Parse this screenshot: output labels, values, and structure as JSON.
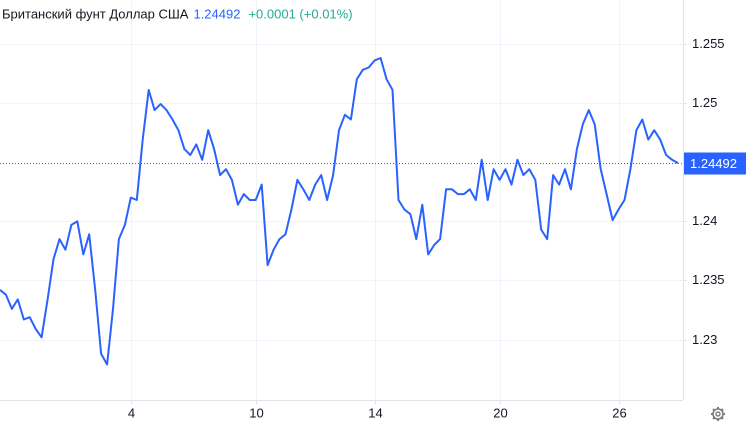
{
  "chart_data": {
    "type": "line",
    "title": "Британский фунт Доллар США",
    "current": 1.24492,
    "change": "+0.0001 (+0.01%)",
    "color": "#2962ff",
    "values": [
      1.2342,
      1.2338,
      1.2326,
      1.2334,
      1.2317,
      1.2319,
      1.2309,
      1.2302,
      1.2334,
      1.2368,
      1.2385,
      1.2376,
      1.2397,
      1.24,
      1.2372,
      1.2389,
      1.2342,
      1.2288,
      1.2279,
      1.2326,
      1.2385,
      1.2397,
      1.242,
      1.2418,
      1.2469,
      1.2511,
      1.2494,
      1.2499,
      1.2494,
      1.2486,
      1.2477,
      1.2461,
      1.2456,
      1.2465,
      1.2452,
      1.2477,
      1.2461,
      1.2439,
      1.2444,
      1.2435,
      1.2414,
      1.2423,
      1.2418,
      1.2418,
      1.2431,
      1.2363,
      1.2376,
      1.2385,
      1.2389,
      1.241,
      1.2435,
      1.2427,
      1.2418,
      1.2431,
      1.2439,
      1.2418,
      1.2439,
      1.2477,
      1.249,
      1.2486,
      1.252,
      1.2528,
      1.253,
      1.2536,
      1.2538,
      1.252,
      1.2511,
      1.2418,
      1.241,
      1.2406,
      1.2385,
      1.2414,
      1.2372,
      1.238,
      1.2385,
      1.2427,
      1.2427,
      1.2423,
      1.2423,
      1.2427,
      1.2418,
      1.2452,
      1.2418,
      1.2444,
      1.2435,
      1.2444,
      1.2431,
      1.2452,
      1.2439,
      1.2444,
      1.2435,
      1.2393,
      1.2385,
      1.2439,
      1.2431,
      1.2444,
      1.2427,
      1.2461,
      1.2482,
      1.2494,
      1.2482,
      1.2444,
      1.2423,
      1.2401,
      1.241,
      1.2418,
      1.2444,
      1.2477,
      1.2486,
      1.2469,
      1.2477,
      1.2469,
      1.2456,
      1.2452,
      1.24492
    ],
    "xticks": [
      {
        "value": 22,
        "label": "4"
      },
      {
        "value": 43,
        "label": "10"
      },
      {
        "value": 63,
        "label": "14"
      },
      {
        "value": 84,
        "label": "20"
      },
      {
        "value": 104,
        "label": "26"
      }
    ],
    "ylim": [
      1.2249,
      1.2587
    ],
    "yticks": [
      1.23,
      1.235,
      1.24,
      1.25,
      1.255
    ],
    "grid": true
  }
}
